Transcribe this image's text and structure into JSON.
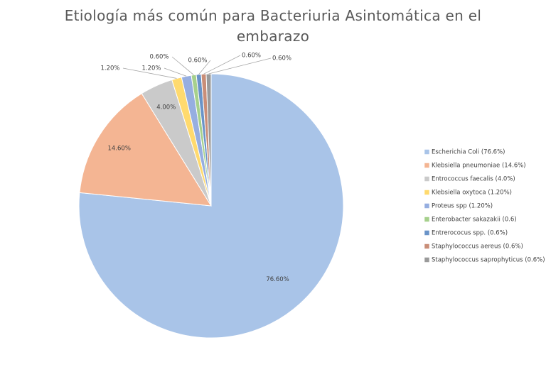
{
  "chart_data": {
    "type": "pie",
    "title": "Etiología más común para Bacteriuria Asintomática en el embarazo",
    "series": [
      {
        "name": "Escherichia Coli (76.6%)",
        "color": "#a9c4e8",
        "values": [
          76.6
        ],
        "value_labels": [
          "76.60%"
        ]
      },
      {
        "name": "Klebsiella pneumoniae (14.6%)",
        "color": "#f4b593",
        "values": [
          14.6
        ],
        "value_labels": [
          "14.60%"
        ]
      },
      {
        "name": "Entrococcus faecalis (4.0%)",
        "color": "#cacaca",
        "values": [
          4.0
        ],
        "value_labels": [
          "4.00%"
        ]
      },
      {
        "name": "Klebsiella oxytoca (1.20%)",
        "color": "#ffda6e",
        "values": [
          1.2
        ],
        "value_labels": [
          "1.20%"
        ]
      },
      {
        "name": "Proteus spp (1.20%)",
        "color": "#96aee0",
        "values": [
          1.2
        ],
        "value_labels": [
          "1.20%"
        ]
      },
      {
        "name": "Enterobacter sakazakii (0.6)",
        "color": "#a6d08c",
        "values": [
          0.6
        ],
        "value_labels": [
          "0.60%"
        ]
      },
      {
        "name": "Entrerococus spp. (0.6%)",
        "color": "#6a94c8",
        "values": [
          0.6
        ],
        "value_labels": [
          "0.60%"
        ]
      },
      {
        "name": "Staphylococcus aereus (0.6%)",
        "color": "#c98e78",
        "values": [
          0.6
        ],
        "value_labels": [
          "0.60%"
        ]
      },
      {
        "name": "Staphylococcus saprophyticus (0.6%)",
        "color": "#9a9a9a",
        "values": [
          0.6
        ],
        "value_labels": [
          "0.60%"
        ]
      }
    ]
  }
}
